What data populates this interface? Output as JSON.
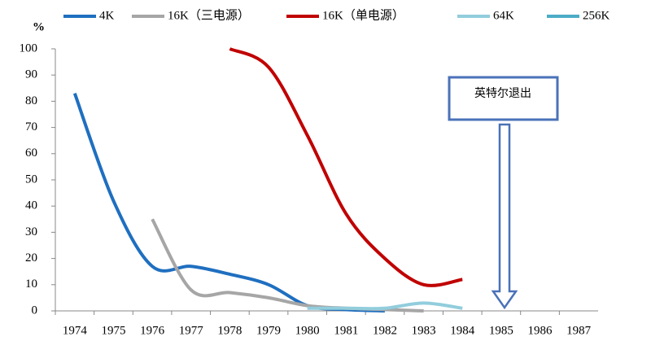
{
  "chart_data": {
    "type": "line",
    "ylabel": "%",
    "annotation": "英特尔退出",
    "categories": [
      "1974",
      "1975",
      "1976",
      "1977",
      "1978",
      "1979",
      "1980",
      "1981",
      "1982",
      "1983",
      "1984",
      "1985",
      "1986",
      "1987"
    ],
    "series": [
      {
        "name": "4K",
        "color": "#1f6fc0",
        "values": [
          83,
          42,
          17,
          17,
          14,
          10,
          2,
          0.5,
          0,
          null,
          null,
          null,
          null,
          null
        ]
      },
      {
        "name": "16K（三电源）",
        "color": "#a6a6a6",
        "values": [
          null,
          null,
          35,
          8,
          7,
          5,
          2,
          1,
          0.5,
          0,
          null,
          null,
          null,
          null
        ]
      },
      {
        "name": "16K（单电源）",
        "color": "#c00000",
        "values": [
          null,
          null,
          null,
          null,
          100,
          93,
          67,
          37,
          20,
          10,
          12,
          null,
          null,
          null
        ]
      },
      {
        "name": "64K",
        "color": "#92cddc",
        "values": [
          null,
          null,
          null,
          null,
          null,
          null,
          1,
          1,
          1,
          3,
          1,
          null,
          null,
          null
        ]
      },
      {
        "name": "256K",
        "color": "#4bacc6",
        "values": [
          null,
          null,
          null,
          null,
          null,
          null,
          null,
          null,
          null,
          null,
          null,
          null,
          null,
          null
        ]
      }
    ],
    "ylim": [
      0,
      100
    ],
    "yticks": [
      0,
      10,
      20,
      30,
      40,
      50,
      60,
      70,
      80,
      90,
      100
    ]
  }
}
